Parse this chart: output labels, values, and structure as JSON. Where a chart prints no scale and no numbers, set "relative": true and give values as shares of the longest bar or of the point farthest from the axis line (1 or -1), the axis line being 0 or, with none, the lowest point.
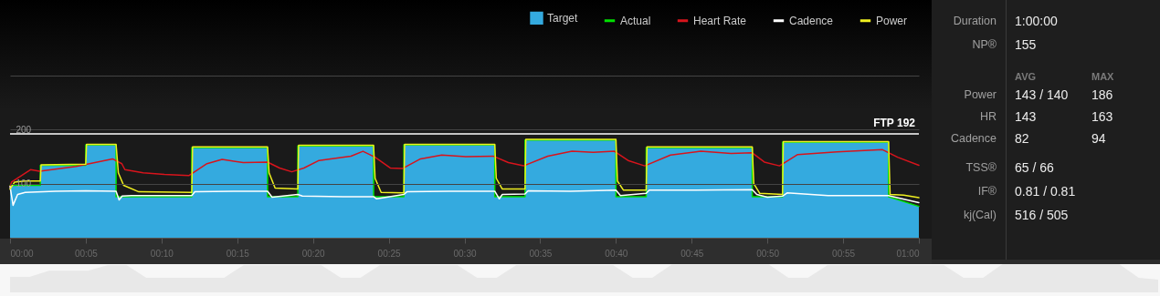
{
  "chart_data": [
    {
      "type": "line",
      "xlim": [
        0,
        60
      ],
      "xticks": [
        {
          "value": 0,
          "label": "00:00"
        },
        {
          "value": 5,
          "label": "00:05"
        },
        {
          "value": 10,
          "label": "00:10"
        },
        {
          "value": 15,
          "label": "00:15"
        },
        {
          "value": 20,
          "label": "00:20"
        },
        {
          "value": 25,
          "label": "00:25"
        },
        {
          "value": 30,
          "label": "00:30"
        },
        {
          "value": 35,
          "label": "00:35"
        },
        {
          "value": 40,
          "label": "00:40"
        },
        {
          "value": 45,
          "label": "00:45"
        },
        {
          "value": 50,
          "label": "00:50"
        },
        {
          "value": 55,
          "label": "00:55"
        },
        {
          "value": 60,
          "label": "01:00"
        }
      ],
      "ylim": [
        0,
        440
      ],
      "yticks": [
        100,
        200,
        {
          "value": 300,
          "label": null
        }
      ],
      "grid": "y",
      "legend": "top right",
      "ref_lines": [
        {
          "axis": "y",
          "value": 192,
          "label": "FTP 192",
          "color": "#ffffff"
        }
      ],
      "series": [
        {
          "name": "Target",
          "type": "area",
          "color": "#34aadf",
          "x": [
            0,
            2,
            2,
            5,
            5,
            7,
            7,
            12,
            12,
            17,
            17,
            19,
            19,
            24,
            24,
            26,
            26,
            32,
            32,
            34,
            34,
            40,
            40,
            42,
            42,
            49,
            49,
            51,
            51,
            58,
            58,
            60
          ],
          "values": [
            97,
            97,
            134,
            134,
            172,
            172,
            76,
            76,
            167,
            167,
            76,
            76,
            170,
            170,
            76,
            76,
            172,
            172,
            76,
            76,
            181,
            181,
            76,
            76,
            167,
            167,
            76,
            76,
            177,
            177,
            76,
            58
          ]
        },
        {
          "name": "Actual",
          "type": "line",
          "color": "#00e000",
          "x": [
            0,
            2,
            2,
            5,
            5,
            7,
            7,
            12,
            12,
            17,
            17,
            19,
            19,
            24,
            24,
            26,
            26,
            32,
            32,
            34,
            34,
            40,
            40,
            42,
            42,
            49,
            49,
            51,
            51,
            58,
            58,
            60
          ],
          "values": [
            97,
            97,
            134,
            134,
            172,
            172,
            76,
            76,
            167,
            167,
            76,
            76,
            170,
            170,
            76,
            76,
            172,
            172,
            76,
            76,
            181,
            181,
            76,
            76,
            167,
            167,
            76,
            76,
            177,
            177,
            76,
            58
          ]
        },
        {
          "name": "Heart Rate",
          "type": "line",
          "color": "#d8141c",
          "x": [
            0,
            0.1,
            1.35,
            1.95,
            4.36,
            6.77,
            7.38,
            7.58,
            8.79,
            10.19,
            11.8,
            13.0,
            14.0,
            15.4,
            17.0,
            17.8,
            18.6,
            19.4,
            20.4,
            21.5,
            22.5,
            23.3,
            24.1,
            25.1,
            25.9,
            27.1,
            28.5,
            30.1,
            31.9,
            32.9,
            33.9,
            35.5,
            37.1,
            38.5,
            39.9,
            40.8,
            41.9,
            43.6,
            45.6,
            47.6,
            49.0,
            49.8,
            50.8,
            52.0,
            54.6,
            57.6,
            58.6,
            60
          ],
          "values": [
            95,
            103,
            126,
            123,
            132,
            146,
            137,
            126,
            120,
            117,
            115,
            137,
            145,
            139,
            140,
            129,
            122,
            129,
            143,
            147,
            151,
            160,
            149,
            129,
            128,
            146,
            153,
            150,
            151,
            139,
            133,
            151,
            160,
            158,
            160,
            143,
            133,
            153,
            160,
            156,
            157,
            140,
            133,
            154,
            159,
            163,
            149,
            134
          ]
        },
        {
          "name": "Cadence",
          "type": "line",
          "color": "#ffffff",
          "x": [
            0,
            0.2,
            0.5,
            1,
            3,
            5,
            7,
            7.2,
            7.4,
            8,
            10,
            12,
            12.2,
            15,
            17,
            17.3,
            19,
            19.3,
            22,
            24,
            24.2,
            26,
            26.2,
            29,
            32,
            32.3,
            32.5,
            34,
            34.2,
            37,
            40,
            40.3,
            42,
            42.2,
            45,
            49,
            49.3,
            50,
            51,
            51.3,
            54,
            56,
            58,
            58.3,
            60
          ],
          "values": [
            95,
            60,
            80,
            84,
            86,
            87,
            86,
            70,
            77,
            78,
            78,
            78,
            85,
            86,
            86,
            75,
            80,
            77,
            76,
            76,
            72,
            80,
            85,
            86,
            86,
            72,
            80,
            81,
            87,
            86,
            88,
            78,
            82,
            88,
            88,
            89,
            80,
            75,
            77,
            83,
            78,
            78,
            78,
            76,
            65
          ]
        },
        {
          "name": "Power",
          "type": "line",
          "color": "#f0f020",
          "x": [
            0,
            0.3,
            1,
            2,
            2.05,
            5,
            5.05,
            7,
            7.15,
            7.5,
            8.5,
            12,
            12.05,
            17,
            17.1,
            17.5,
            19,
            19.05,
            24,
            24.1,
            24.5,
            26,
            26.05,
            32,
            32.1,
            32.5,
            34,
            34.05,
            40,
            40.1,
            40.5,
            42,
            42.05,
            49,
            49.1,
            49.5,
            51,
            51.05,
            58,
            58.1,
            59,
            60
          ],
          "values": [
            90,
            103,
            105,
            105,
            135,
            136,
            173,
            173,
            120,
            97,
            85,
            84,
            168,
            168,
            120,
            92,
            90,
            171,
            171,
            110,
            84,
            83,
            173,
            173,
            110,
            90,
            90,
            182,
            182,
            105,
            88,
            88,
            168,
            168,
            100,
            82,
            80,
            178,
            178,
            80,
            79,
            74
          ]
        }
      ]
    },
    {
      "type": "other",
      "annotations": [
        "Duration",
        "1:00:00",
        "NP®",
        "155",
        "AVG",
        "MAX",
        "Power",
        "143 / 140",
        "186",
        "HR",
        "143",
        "163",
        "Cadence",
        "82",
        "94",
        "TSS®",
        "65 / 66",
        "IF®",
        "0.81 / 0.81",
        "kj(Cal)",
        "516 / 505"
      ]
    },
    {
      "type": "area",
      "relative": true,
      "color": "#e8e8e8",
      "categories": [
        null,
        null,
        null,
        null,
        null,
        null,
        null,
        null,
        null,
        null,
        null,
        null,
        null,
        null,
        null,
        null,
        null,
        null,
        null,
        null,
        null,
        null,
        null,
        null,
        null,
        null,
        null,
        null,
        null,
        null,
        null,
        null,
        null,
        null,
        null,
        null,
        null,
        null,
        null,
        null,
        null,
        null,
        null,
        null,
        null,
        null,
        null,
        null,
        null,
        null,
        null,
        null,
        null,
        null,
        null,
        null,
        null,
        null,
        null,
        null
      ],
      "values": [
        0.55,
        0.55,
        0.77,
        0.77,
        0.77,
        0.96,
        0.96,
        0.52,
        0.52,
        0.52,
        0.52,
        0.52,
        0.96,
        0.96,
        0.96,
        0.96,
        0.96,
        0.52,
        0.52,
        0.96,
        0.96,
        0.96,
        0.96,
        0.96,
        0.52,
        0.52,
        0.96,
        0.96,
        0.96,
        0.96,
        0.96,
        0.96,
        0.52,
        0.52,
        0.98,
        0.98,
        0.98,
        0.98,
        0.98,
        0.98,
        0.52,
        0.52,
        0.96,
        0.96,
        0.96,
        0.96,
        0.96,
        0.96,
        0.96,
        0.52,
        0.52,
        1,
        1,
        1,
        1,
        1,
        1,
        1,
        0.52,
        0.45
      ]
    }
  ]
}
